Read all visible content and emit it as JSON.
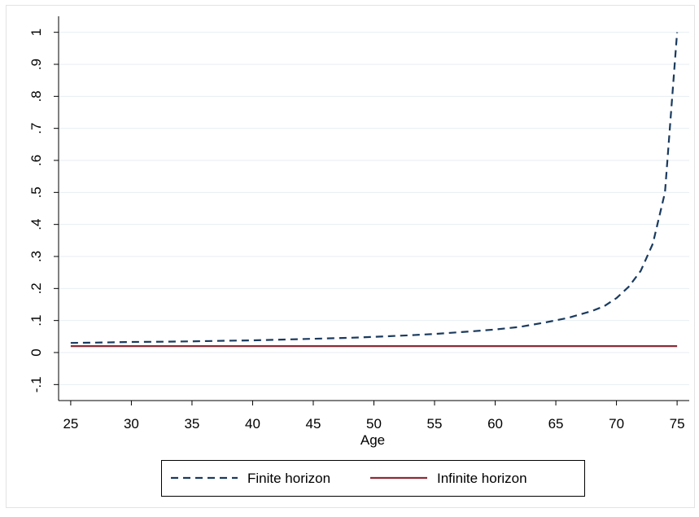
{
  "chart_data": {
    "type": "line",
    "title": "",
    "xlabel": "Age",
    "ylabel": "",
    "xlim": [
      24,
      76
    ],
    "ylim": [
      -0.15,
      1.05
    ],
    "grid": true,
    "legend_position": "bottom",
    "x_ticks": [
      25,
      30,
      35,
      40,
      45,
      50,
      55,
      60,
      65,
      70,
      75
    ],
    "x_tick_labels": [
      "25",
      "30",
      "35",
      "40",
      "45",
      "50",
      "55",
      "60",
      "65",
      "70",
      "75"
    ],
    "y_ticks": [
      -0.1,
      0,
      0.1,
      0.2,
      0.3,
      0.4,
      0.5,
      0.6,
      0.7,
      0.8,
      0.9,
      1
    ],
    "y_tick_labels": [
      "-.1",
      "0",
      ".1",
      ".2",
      ".3",
      ".4",
      ".5",
      ".6",
      ".7",
      ".8",
      ".9",
      "1"
    ],
    "x": [
      25,
      27,
      30,
      33,
      35,
      38,
      40,
      43,
      45,
      48,
      50,
      53,
      55,
      58,
      60,
      62,
      64,
      66,
      68,
      69,
      70,
      71,
      72,
      73,
      74,
      75
    ],
    "series": [
      {
        "name": "Finite horizon",
        "color": "#1a3a5e",
        "dash": true,
        "values": [
          0.03,
          0.031,
          0.033,
          0.034,
          0.035,
          0.037,
          0.038,
          0.041,
          0.043,
          0.046,
          0.049,
          0.054,
          0.058,
          0.066,
          0.072,
          0.08,
          0.093,
          0.108,
          0.13,
          0.145,
          0.17,
          0.205,
          0.255,
          0.34,
          0.5,
          1.0
        ]
      },
      {
        "name": "Infinite horizon",
        "color": "#8b2c35",
        "dash": false,
        "values": [
          0.02,
          0.02,
          0.02,
          0.02,
          0.02,
          0.02,
          0.02,
          0.02,
          0.02,
          0.02,
          0.02,
          0.02,
          0.02,
          0.02,
          0.02,
          0.02,
          0.02,
          0.02,
          0.02,
          0.02,
          0.02,
          0.02,
          0.02,
          0.02,
          0.02,
          0.02
        ]
      }
    ]
  }
}
